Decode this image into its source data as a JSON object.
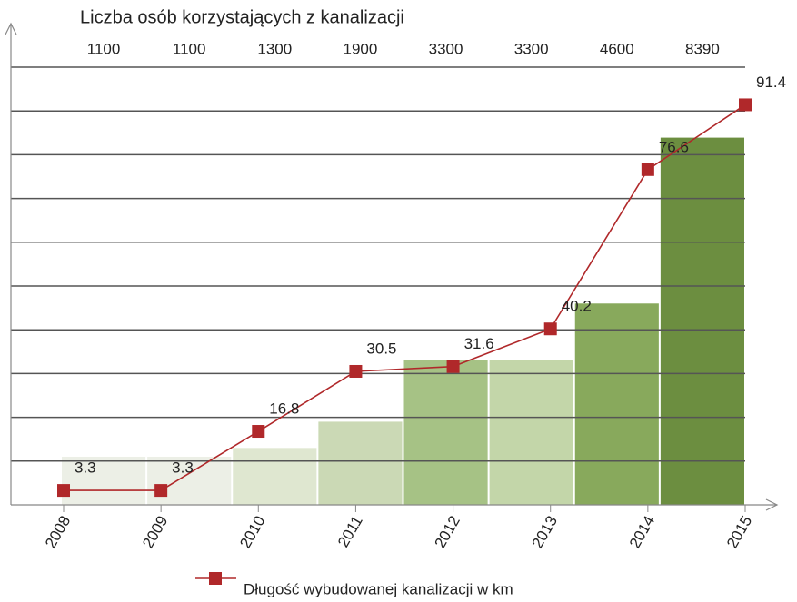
{
  "chart_data": {
    "type": "combo",
    "title": "Liczba osób korzystających z kanalizacji",
    "categories": [
      "2008",
      "2009",
      "2010",
      "2011",
      "2012",
      "2013",
      "2014",
      "2015"
    ],
    "ylim": [
      0,
      100
    ],
    "yticks": [
      10,
      20,
      30,
      40,
      50,
      60,
      70,
      80,
      90,
      100
    ],
    "grid": true,
    "y2lim": [
      0,
      10000
    ],
    "series": [
      {
        "type": "bar",
        "axis": "y2",
        "values": [
          1100,
          1100,
          1300,
          1900,
          3300,
          3300,
          4600,
          8390
        ],
        "colors": [
          "#ecefe6",
          "#ecefe6",
          "#dfe7d0",
          "#cbd9b5",
          "#a6c285",
          "#c3d6a9",
          "#88a95c",
          "#6c8e40"
        ]
      },
      {
        "type": "line",
        "name": "Długość wybudowanej kanalizacji w km",
        "color": "#b0282a",
        "values": [
          3.3,
          3.3,
          16.8,
          30.5,
          31.6,
          40.2,
          76.6,
          91.4
        ]
      }
    ],
    "legend": "bottom"
  }
}
